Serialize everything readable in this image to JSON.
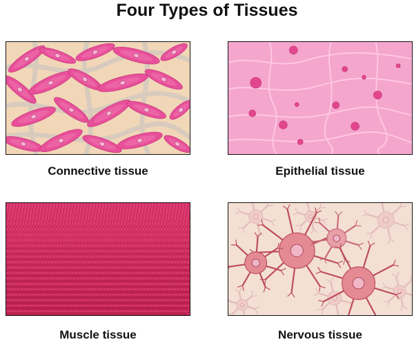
{
  "title": "Four Types of Tissues",
  "panels": [
    {
      "id": "connective",
      "label": "Connective tissue"
    },
    {
      "id": "epithelial",
      "label": "Epithelial tissue"
    },
    {
      "id": "muscle",
      "label": "Muscle tissue"
    },
    {
      "id": "nervous",
      "label": "Nervous tissue"
    }
  ],
  "colors": {
    "connective_background": "#f1d7b8",
    "connective_cell": "#e8509a",
    "epithelial_background": "#f4a6cc",
    "epithelial_nucleus": "#e2478e",
    "muscle_fiber": "#e03c72",
    "nervous_background": "#f3dfd4",
    "neuron": "#d9707a"
  }
}
